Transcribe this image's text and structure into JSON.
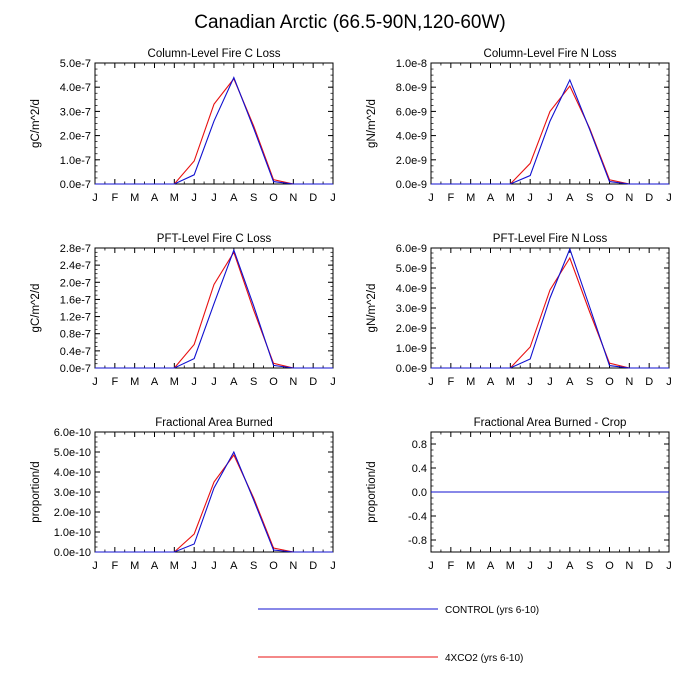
{
  "title": "Canadian Arctic (66.5-90N,120-60W)",
  "colors": {
    "control": "#1010d0",
    "co2": "#e81010",
    "axis": "#000000"
  },
  "legend": [
    {
      "name": "CONTROL (yrs 6-10)",
      "color": "#1010d0"
    },
    {
      "name": "4XCO2 (yrs 6-10)",
      "color": "#e81010"
    }
  ],
  "chart_data": [
    {
      "type": "line",
      "title": "Column-Level Fire C Loss",
      "ylabel": "gC/m^2/d",
      "categories": [
        "J",
        "F",
        "M",
        "A",
        "M",
        "J",
        "J",
        "A",
        "S",
        "O",
        "N",
        "D",
        "J"
      ],
      "ylim": [
        0,
        5e-07
      ],
      "yticks": [
        0,
        1e-07,
        2e-07,
        3e-07,
        4e-07,
        5e-07
      ],
      "yticklabels": [
        "0.0e-7",
        "1.0e-7",
        "2.0e-7",
        "3.0e-7",
        "4.0e-7",
        "5.0e-7"
      ],
      "series": [
        {
          "name": "CONTROL (yrs 6-10)",
          "values": [
            0,
            0,
            0,
            0,
            0,
            3.8e-08,
            2.6e-07,
            4.4e-07,
            2.3e-07,
            1e-08,
            0,
            0,
            0
          ]
        },
        {
          "name": "4XCO2 (yrs 6-10)",
          "values": [
            0,
            0,
            0,
            0,
            0,
            9.5e-08,
            3.3e-07,
            4.35e-07,
            2.4e-07,
            1.8e-08,
            0,
            0,
            0
          ]
        }
      ]
    },
    {
      "type": "line",
      "title": "Column-Level Fire N Loss",
      "ylabel": "gN/m^2/d",
      "categories": [
        "J",
        "F",
        "M",
        "A",
        "M",
        "J",
        "J",
        "A",
        "S",
        "O",
        "N",
        "D",
        "J"
      ],
      "ylim": [
        0,
        1e-08
      ],
      "yticks": [
        0,
        2e-09,
        4e-09,
        6e-09,
        8e-09,
        1e-08
      ],
      "yticklabels": [
        "0.0e-9",
        "2.0e-9",
        "4.0e-9",
        "6.0e-9",
        "8.0e-9",
        "1.0e-8"
      ],
      "series": [
        {
          "name": "CONTROL (yrs 6-10)",
          "values": [
            0,
            0,
            0,
            0,
            0,
            7e-10,
            5.2e-09,
            8.6e-09,
            4.5e-09,
            2e-10,
            0,
            0,
            0
          ]
        },
        {
          "name": "4XCO2 (yrs 6-10)",
          "values": [
            0,
            0,
            0,
            0,
            0,
            1.7e-09,
            6e-09,
            8.1e-09,
            4.6e-09,
            3.5e-10,
            0,
            0,
            0
          ]
        }
      ]
    },
    {
      "type": "line",
      "title": "PFT-Level Fire C Loss",
      "ylabel": "gC/m^2/d",
      "categories": [
        "J",
        "F",
        "M",
        "A",
        "M",
        "J",
        "J",
        "A",
        "S",
        "O",
        "N",
        "D",
        "J"
      ],
      "ylim": [
        0,
        2.8e-07
      ],
      "yticks": [
        0,
        4e-08,
        8e-08,
        1.2e-07,
        1.6e-07,
        2e-07,
        2.4e-07,
        2.8e-07
      ],
      "yticklabels": [
        "0.0e-7",
        "0.4e-7",
        "0.8e-7",
        "1.2e-7",
        "1.6e-7",
        "2.0e-7",
        "2.4e-7",
        "2.8e-7"
      ],
      "series": [
        {
          "name": "CONTROL (yrs 6-10)",
          "values": [
            0,
            0,
            0,
            0,
            0,
            2.2e-08,
            1.5e-07,
            2.75e-07,
            1.45e-07,
            6e-09,
            0,
            0,
            0
          ]
        },
        {
          "name": "4XCO2 (yrs 6-10)",
          "values": [
            0,
            0,
            0,
            0,
            0,
            5.5e-08,
            1.95e-07,
            2.7e-07,
            1.35e-07,
            1.1e-08,
            0,
            0,
            0
          ]
        }
      ]
    },
    {
      "type": "line",
      "title": "PFT-Level Fire N Loss",
      "ylabel": "gN/m^2/d",
      "categories": [
        "J",
        "F",
        "M",
        "A",
        "M",
        "J",
        "J",
        "A",
        "S",
        "O",
        "N",
        "D",
        "J"
      ],
      "ylim": [
        0,
        6e-09
      ],
      "yticks": [
        0,
        1e-09,
        2e-09,
        3e-09,
        4e-09,
        5e-09,
        6e-09
      ],
      "yticklabels": [
        "0.0e-9",
        "1.0e-9",
        "2.0e-9",
        "3.0e-9",
        "4.0e-9",
        "5.0e-9",
        "6.0e-9"
      ],
      "series": [
        {
          "name": "CONTROL (yrs 6-10)",
          "values": [
            0,
            0,
            0,
            0,
            0,
            4.5e-10,
            3.5e-09,
            5.95e-09,
            3.05e-09,
            1.2e-10,
            0,
            0,
            0
          ]
        },
        {
          "name": "4XCO2 (yrs 6-10)",
          "values": [
            0,
            0,
            0,
            0,
            0,
            1.05e-09,
            3.9e-09,
            5.5e-09,
            2.8e-09,
            2.4e-10,
            0,
            0,
            0
          ]
        }
      ]
    },
    {
      "type": "line",
      "title": "Fractional Area Burned",
      "ylabel": "proportion/d",
      "categories": [
        "J",
        "F",
        "M",
        "A",
        "M",
        "J",
        "J",
        "A",
        "S",
        "O",
        "N",
        "D",
        "J"
      ],
      "ylim": [
        0,
        6e-10
      ],
      "yticks": [
        0,
        1e-10,
        2e-10,
        3e-10,
        4e-10,
        5e-10,
        6e-10
      ],
      "yticklabels": [
        "0.0e-10",
        "1.0e-10",
        "2.0e-10",
        "3.0e-10",
        "4.0e-10",
        "5.0e-10",
        "6.0e-10"
      ],
      "series": [
        {
          "name": "CONTROL (yrs 6-10)",
          "values": [
            0,
            0,
            0,
            0,
            0,
            4e-11,
            3.2e-10,
            5e-10,
            2.6e-10,
            1e-11,
            0,
            0,
            0
          ]
        },
        {
          "name": "4XCO2 (yrs 6-10)",
          "values": [
            0,
            0,
            0,
            0,
            0,
            9e-11,
            3.5e-10,
            4.85e-10,
            2.7e-10,
            2e-11,
            0,
            0,
            0
          ]
        }
      ]
    },
    {
      "type": "line",
      "title": "Fractional Area Burned - Crop",
      "ylabel": "proportion/d",
      "categories": [
        "J",
        "F",
        "M",
        "A",
        "M",
        "J",
        "J",
        "A",
        "S",
        "O",
        "N",
        "D",
        "J"
      ],
      "ylim": [
        -1,
        1
      ],
      "yticks": [
        -0.8,
        -0.4,
        0,
        0.4,
        0.8
      ],
      "yticklabels": [
        "-0.8",
        "-0.4",
        "0.0",
        "0.4",
        "0.8"
      ],
      "series": [
        {
          "name": "CONTROL (yrs 6-10)",
          "values": [
            0,
            0,
            0,
            0,
            0,
            0,
            0,
            0,
            0,
            0,
            0,
            0,
            0
          ]
        },
        {
          "name": "4XCO2 (yrs 6-10)",
          "values": [
            0,
            0,
            0,
            0,
            0,
            0,
            0,
            0,
            0,
            0,
            0,
            0,
            0
          ]
        }
      ]
    }
  ]
}
